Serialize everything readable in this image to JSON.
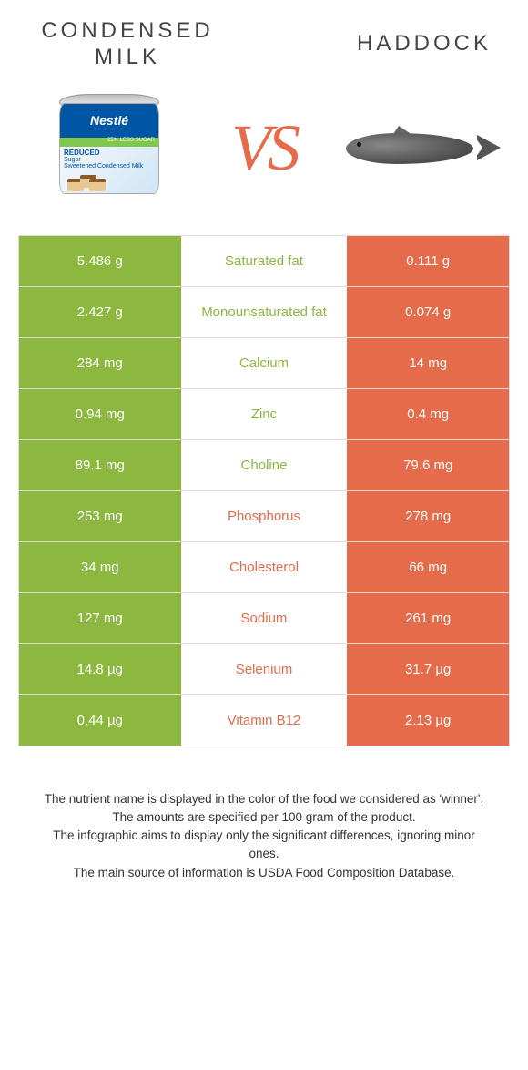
{
  "header": {
    "left_title": "CONDENSED MILK",
    "right_title": "HADDOCK",
    "vs": "VS",
    "can_brand": "Nestlé",
    "can_tag": "25% LESS SUGAR",
    "can_line1": "REDUCED",
    "can_line2": "Sugar",
    "can_line3": "Sweetened Condensed Milk"
  },
  "colors": {
    "green": "#8cb83f",
    "orange": "#e66b4a",
    "bg": "#ffffff",
    "border": "#dddddd"
  },
  "rows": [
    {
      "left": "5.486 g",
      "mid": "Saturated fat",
      "right": "0.111 g",
      "winner": "green"
    },
    {
      "left": "2.427 g",
      "mid": "Monounsaturated fat",
      "right": "0.074 g",
      "winner": "green"
    },
    {
      "left": "284 mg",
      "mid": "Calcium",
      "right": "14 mg",
      "winner": "green"
    },
    {
      "left": "0.94 mg",
      "mid": "Zinc",
      "right": "0.4 mg",
      "winner": "green"
    },
    {
      "left": "89.1 mg",
      "mid": "Choline",
      "right": "79.6 mg",
      "winner": "green"
    },
    {
      "left": "253 mg",
      "mid": "Phosphorus",
      "right": "278 mg",
      "winner": "orange"
    },
    {
      "left": "34 mg",
      "mid": "Cholesterol",
      "right": "66 mg",
      "winner": "orange"
    },
    {
      "left": "127 mg",
      "mid": "Sodium",
      "right": "261 mg",
      "winner": "orange"
    },
    {
      "left": "14.8 µg",
      "mid": "Selenium",
      "right": "31.7 µg",
      "winner": "orange"
    },
    {
      "left": "0.44 µg",
      "mid": "Vitamin B12",
      "right": "2.13 µg",
      "winner": "orange"
    }
  ],
  "footer": {
    "l1": "The nutrient name is displayed in the color of the food we considered as 'winner'.",
    "l2": "The amounts are specified per 100 gram of the product.",
    "l3": "The infographic aims to display only the significant differences, ignoring minor ones.",
    "l4": "The main source of information is USDA Food Composition Database."
  }
}
